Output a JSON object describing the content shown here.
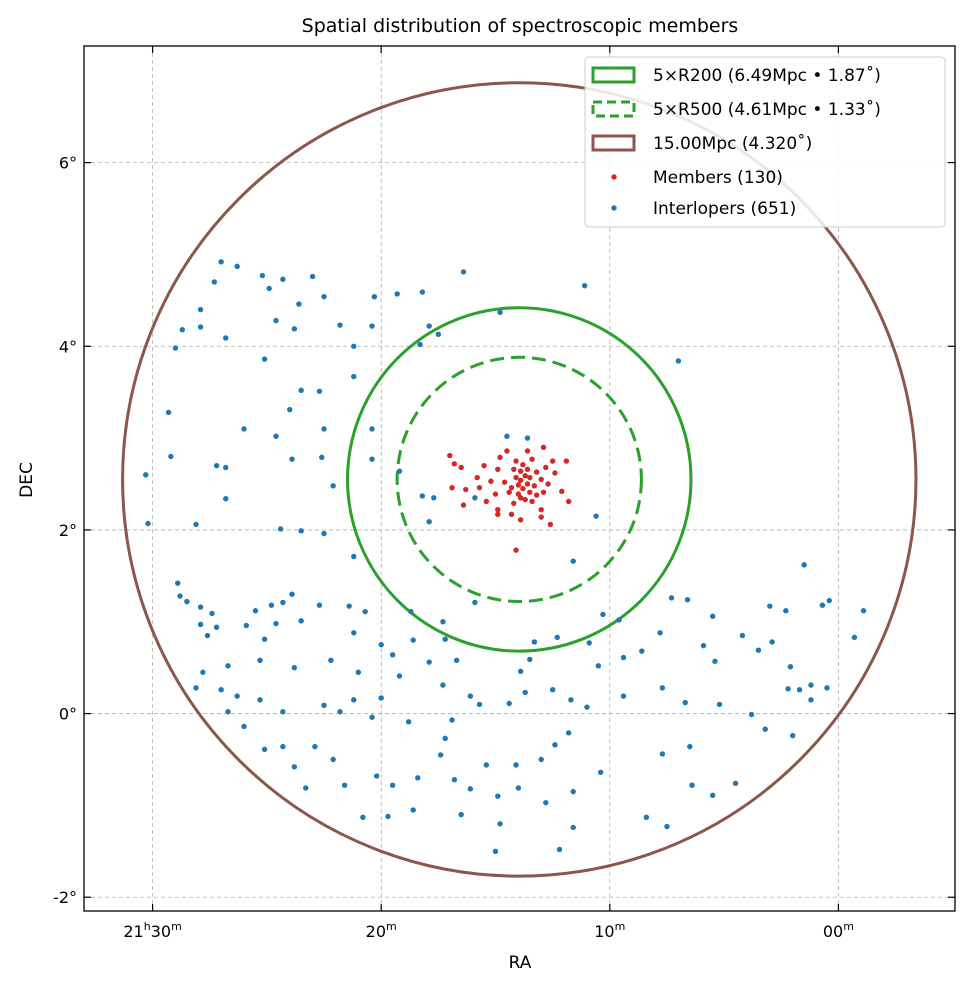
{
  "chart_data": {
    "type": "scatter",
    "title": "Spatial distribution of spectroscopic members",
    "xlabel": "RA",
    "ylabel": "DEC",
    "x_units": "RA minutes after 21h00m",
    "xlim": [
      33.0,
      -5.1
    ],
    "ylim": [
      -2.15,
      7.27
    ],
    "grid": true,
    "legend_placement": "top-right",
    "xticks": [
      {
        "value": 30,
        "parts": [
          [
            "21",
            false
          ],
          [
            "h",
            true
          ],
          [
            "30",
            false
          ],
          [
            "m",
            true
          ]
        ]
      },
      {
        "value": 20,
        "parts": [
          [
            "20",
            false
          ],
          [
            "m",
            true
          ]
        ]
      },
      {
        "value": 10,
        "parts": [
          [
            "10",
            false
          ],
          [
            "m",
            true
          ]
        ]
      },
      {
        "value": 0,
        "parts": [
          [
            "00",
            false
          ],
          [
            "m",
            true
          ]
        ]
      }
    ],
    "yticks": [
      {
        "value": 6,
        "label": "6°"
      },
      {
        "value": 4,
        "label": "4°"
      },
      {
        "value": 2,
        "label": "2°"
      },
      {
        "value": 0,
        "label": "0°"
      },
      {
        "value": -2,
        "label": "-2°"
      }
    ],
    "center": {
      "ra": 13.96,
      "dec": 2.55
    },
    "circles": [
      {
        "name": "5×R200",
        "label": "5×R200 (6.49Mpc • 1.87$^\\circ$)",
        "display": "5×R200 (6.49Mpc • 1.87˚)",
        "radius_deg": 1.87,
        "color": "#2ca02c",
        "dashed": false
      },
      {
        "name": "5×R500",
        "display": "5×R500 (4.61Mpc • 1.33˚)",
        "radius_deg": 1.33,
        "color": "#2ca02c",
        "dashed": true
      },
      {
        "name": "15.00Mpc",
        "display": "15.00Mpc (4.320˚)",
        "radius_deg": 4.32,
        "color": "#8c564b",
        "dashed": false
      }
    ],
    "series": [
      {
        "name": "Members (130)",
        "color": "#d62728",
        "points": [
          [
            17.0,
            2.81
          ],
          [
            16.8,
            2.72
          ],
          [
            16.5,
            2.68
          ],
          [
            16.9,
            2.46
          ],
          [
            16.4,
            2.27
          ],
          [
            15.8,
            2.57
          ],
          [
            15.7,
            2.46
          ],
          [
            15.5,
            2.7
          ],
          [
            15.2,
            2.53
          ],
          [
            15.0,
            2.39
          ],
          [
            14.9,
            2.22
          ],
          [
            14.9,
            2.66
          ],
          [
            14.8,
            2.79
          ],
          [
            14.6,
            2.52
          ],
          [
            14.5,
            2.86
          ],
          [
            14.4,
            2.41
          ],
          [
            14.3,
            2.17
          ],
          [
            14.2,
            2.66
          ],
          [
            14.1,
            2.57
          ],
          [
            14.1,
            2.75
          ],
          [
            14.0,
            2.49
          ],
          [
            14.0,
            2.39
          ],
          [
            13.9,
            2.64
          ],
          [
            13.9,
            2.54
          ],
          [
            13.8,
            2.71
          ],
          [
            13.8,
            2.45
          ],
          [
            13.7,
            2.59
          ],
          [
            13.7,
            2.33
          ],
          [
            13.6,
            2.5
          ],
          [
            13.6,
            2.66
          ],
          [
            13.5,
            2.41
          ],
          [
            13.5,
            2.57
          ],
          [
            13.4,
            2.77
          ],
          [
            13.3,
            2.48
          ],
          [
            13.2,
            2.63
          ],
          [
            13.2,
            2.38
          ],
          [
            13.0,
            2.55
          ],
          [
            13.0,
            2.22
          ],
          [
            12.8,
            2.68
          ],
          [
            12.7,
            2.5
          ],
          [
            12.5,
            2.75
          ],
          [
            12.4,
            2.62
          ],
          [
            12.1,
            2.42
          ],
          [
            11.9,
            2.75
          ],
          [
            11.8,
            2.31
          ],
          [
            12.6,
            2.06
          ],
          [
            13.0,
            2.14
          ],
          [
            13.9,
            2.11
          ],
          [
            14.1,
            1.78
          ],
          [
            14.9,
            2.17
          ],
          [
            15.4,
            2.31
          ],
          [
            16.3,
            2.44
          ],
          [
            12.9,
            2.9
          ],
          [
            13.6,
            2.86
          ],
          [
            13.9,
            2.35
          ],
          [
            14.3,
            2.46
          ],
          [
            13.4,
            2.31
          ],
          [
            14.2,
            2.29
          ],
          [
            12.9,
            2.41
          ]
        ]
      },
      {
        "name": "Interlopers (651)",
        "color": "#1f77b4",
        "points": [
          [
            27.0,
            4.92
          ],
          [
            26.3,
            4.87
          ],
          [
            27.3,
            4.7
          ],
          [
            25.2,
            4.77
          ],
          [
            24.9,
            4.63
          ],
          [
            24.3,
            4.73
          ],
          [
            23.0,
            4.76
          ],
          [
            22.5,
            4.54
          ],
          [
            23.6,
            4.46
          ],
          [
            20.3,
            4.54
          ],
          [
            19.3,
            4.57
          ],
          [
            18.2,
            4.59
          ],
          [
            16.4,
            4.81
          ],
          [
            11.1,
            4.66
          ],
          [
            14.8,
            4.37
          ],
          [
            27.9,
            4.4
          ],
          [
            28.7,
            4.18
          ],
          [
            27.9,
            4.21
          ],
          [
            24.6,
            4.28
          ],
          [
            23.8,
            4.19
          ],
          [
            21.8,
            4.23
          ],
          [
            20.4,
            4.22
          ],
          [
            17.9,
            4.22
          ],
          [
            17.5,
            4.13
          ],
          [
            21.2,
            4.0
          ],
          [
            18.3,
            4.02
          ],
          [
            29.0,
            3.98
          ],
          [
            26.8,
            4.09
          ],
          [
            25.1,
            3.86
          ],
          [
            21.2,
            3.67
          ],
          [
            23.5,
            3.52
          ],
          [
            22.7,
            3.51
          ],
          [
            24.0,
            3.31
          ],
          [
            29.3,
            3.28
          ],
          [
            26.0,
            3.1
          ],
          [
            24.6,
            3.02
          ],
          [
            22.5,
            3.1
          ],
          [
            20.4,
            3.1
          ],
          [
            23.9,
            2.77
          ],
          [
            29.2,
            2.8
          ],
          [
            27.2,
            2.7
          ],
          [
            26.8,
            2.68
          ],
          [
            30.3,
            2.6
          ],
          [
            22.6,
            2.79
          ],
          [
            20.4,
            2.77
          ],
          [
            22.1,
            2.48
          ],
          [
            26.8,
            2.34
          ],
          [
            30.2,
            2.07
          ],
          [
            28.1,
            2.06
          ],
          [
            24.4,
            2.01
          ],
          [
            23.5,
            1.99
          ],
          [
            22.5,
            1.96
          ],
          [
            21.2,
            1.71
          ],
          [
            19.2,
            2.64
          ],
          [
            18.2,
            2.37
          ],
          [
            17.7,
            2.35
          ],
          [
            17.9,
            2.09
          ],
          [
            15.9,
            2.35
          ],
          [
            14.5,
            3.02
          ],
          [
            13.6,
            3.0
          ],
          [
            7.0,
            3.84
          ],
          [
            11.6,
            1.66
          ],
          [
            1.5,
            1.62
          ],
          [
            10.6,
            2.15
          ],
          [
            15.9,
            1.21
          ],
          [
            17.3,
            1.0
          ],
          [
            18.7,
            1.11
          ],
          [
            28.9,
            1.42
          ],
          [
            28.8,
            1.28
          ],
          [
            28.5,
            1.22
          ],
          [
            27.9,
            1.16
          ],
          [
            27.4,
            1.09
          ],
          [
            27.9,
            0.97
          ],
          [
            27.6,
            0.85
          ],
          [
            27.2,
            0.94
          ],
          [
            25.9,
            0.96
          ],
          [
            25.5,
            1.12
          ],
          [
            24.8,
            1.18
          ],
          [
            24.3,
            1.21
          ],
          [
            23.9,
            1.3
          ],
          [
            25.1,
            0.81
          ],
          [
            24.6,
            0.98
          ],
          [
            23.5,
            1.01
          ],
          [
            22.7,
            1.18
          ],
          [
            21.4,
            1.17
          ],
          [
            20.7,
            1.11
          ],
          [
            21.2,
            0.88
          ],
          [
            20.0,
            0.75
          ],
          [
            19.5,
            0.64
          ],
          [
            18.6,
            0.8
          ],
          [
            17.2,
            0.81
          ],
          [
            16.7,
            0.58
          ],
          [
            17.9,
            0.56
          ],
          [
            19.2,
            0.41
          ],
          [
            21.0,
            0.45
          ],
          [
            22.2,
            0.58
          ],
          [
            23.8,
            0.5
          ],
          [
            25.3,
            0.58
          ],
          [
            26.7,
            0.52
          ],
          [
            27.8,
            0.45
          ],
          [
            28.1,
            0.28
          ],
          [
            27.0,
            0.26
          ],
          [
            26.3,
            0.19
          ],
          [
            25.3,
            0.15
          ],
          [
            24.3,
            0.02
          ],
          [
            22.5,
            0.09
          ],
          [
            21.8,
            0.02
          ],
          [
            20.4,
            -0.04
          ],
          [
            18.8,
            -0.09
          ],
          [
            16.9,
            -0.07
          ],
          [
            15.7,
            0.1
          ],
          [
            14.4,
            0.11
          ],
          [
            13.7,
            0.23
          ],
          [
            13.9,
            0.46
          ],
          [
            13.5,
            0.59
          ],
          [
            12.5,
            0.26
          ],
          [
            11.7,
            0.15
          ],
          [
            11.0,
            0.07
          ],
          [
            13.3,
            0.78
          ],
          [
            12.3,
            0.83
          ],
          [
            10.9,
            0.77
          ],
          [
            10.5,
            0.52
          ],
          [
            9.4,
            0.61
          ],
          [
            8.6,
            0.68
          ],
          [
            7.8,
            0.88
          ],
          [
            9.6,
            1.02
          ],
          [
            10.3,
            1.08
          ],
          [
            9.4,
            0.19
          ],
          [
            7.7,
            0.28
          ],
          [
            6.7,
            0.12
          ],
          [
            5.9,
            0.74
          ],
          [
            5.4,
            0.57
          ],
          [
            5.2,
            0.1
          ],
          [
            4.2,
            0.85
          ],
          [
            3.5,
            0.69
          ],
          [
            3.0,
            1.17
          ],
          [
            2.3,
            1.12
          ],
          [
            2.9,
            0.78
          ],
          [
            2.1,
            0.51
          ],
          [
            2.2,
            0.27
          ],
          [
            1.7,
            0.26
          ],
          [
            1.2,
            0.31
          ],
          [
            0.5,
            0.28
          ],
          [
            0.7,
            1.18
          ],
          [
            0.4,
            1.23
          ],
          [
            -1.1,
            1.12
          ],
          [
            -0.7,
            0.83
          ],
          [
            7.3,
            1.26
          ],
          [
            6.6,
            1.24
          ],
          [
            5.5,
            1.06
          ],
          [
            3.8,
            -0.01
          ],
          [
            3.2,
            -0.17
          ],
          [
            2.0,
            -0.24
          ],
          [
            1.2,
            0.15
          ],
          [
            4.5,
            -0.76
          ],
          [
            5.5,
            -0.89
          ],
          [
            6.4,
            -0.78
          ],
          [
            7.7,
            -0.44
          ],
          [
            6.5,
            -0.36
          ],
          [
            8.4,
            -1.13
          ],
          [
            7.5,
            -1.23
          ],
          [
            10.4,
            -0.64
          ],
          [
            11.6,
            -0.85
          ],
          [
            11.6,
            -1.24
          ],
          [
            12.2,
            -1.48
          ],
          [
            12.8,
            -0.97
          ],
          [
            12.4,
            -0.34
          ],
          [
            11.8,
            -0.21
          ],
          [
            13.0,
            -0.5
          ],
          [
            14.0,
            -0.81
          ],
          [
            14.1,
            -0.56
          ],
          [
            14.9,
            -0.9
          ],
          [
            14.8,
            -1.2
          ],
          [
            15.0,
            -1.5
          ],
          [
            15.4,
            -0.56
          ],
          [
            16.1,
            -0.82
          ],
          [
            16.5,
            -1.1
          ],
          [
            16.8,
            -0.72
          ],
          [
            17.4,
            -0.45
          ],
          [
            17.2,
            -0.27
          ],
          [
            18.4,
            -0.7
          ],
          [
            18.6,
            -1.05
          ],
          [
            19.7,
            -1.12
          ],
          [
            19.5,
            -0.78
          ],
          [
            20.2,
            -0.68
          ],
          [
            20.8,
            -1.13
          ],
          [
            21.6,
            -0.78
          ],
          [
            22.1,
            -0.5
          ],
          [
            23.3,
            -0.81
          ],
          [
            23.8,
            -0.58
          ],
          [
            24.3,
            -0.36
          ],
          [
            25.1,
            -0.39
          ],
          [
            22.9,
            -0.36
          ],
          [
            26.0,
            -0.14
          ],
          [
            26.7,
            0.02
          ],
          [
            16.1,
            0.19
          ],
          [
            17.3,
            0.31
          ],
          [
            20.0,
            0.17
          ],
          [
            21.2,
            0.15
          ]
        ]
      }
    ]
  }
}
